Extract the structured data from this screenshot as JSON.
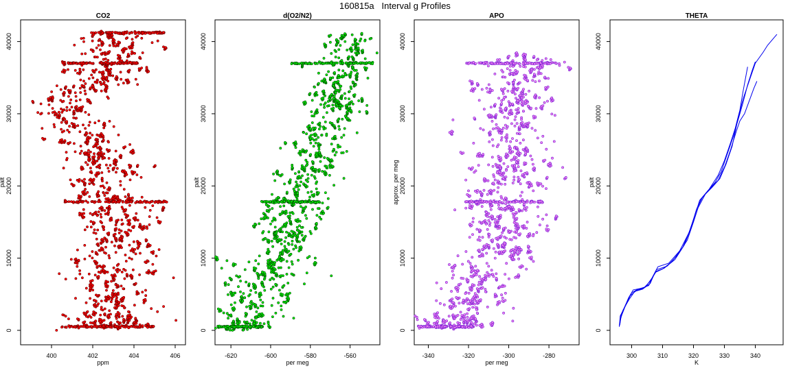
{
  "suptitle": "160815a   Interval g Profiles",
  "chart_data": [
    {
      "type": "scatter",
      "title": "CO2",
      "xlabel": "ppm",
      "ylabel": "palt",
      "xlim": [
        398.5,
        406.5
      ],
      "ylim": [
        -2000,
        43000
      ],
      "xticks": [
        400,
        402,
        404,
        406
      ],
      "yticks": [
        0,
        10000,
        20000,
        30000,
        40000
      ],
      "point_color": "#ff0000",
      "outline_color": "#6b0000",
      "profile": [
        [
          0,
          403.0
        ],
        [
          5000,
          403.1
        ],
        [
          10000,
          403.0
        ],
        [
          15000,
          403.0
        ],
        [
          18000,
          402.9
        ],
        [
          20000,
          402.7
        ],
        [
          22000,
          402.6
        ],
        [
          25000,
          402.0
        ],
        [
          27000,
          401.6
        ],
        [
          28500,
          400.9
        ],
        [
          30000,
          400.7
        ],
        [
          32000,
          400.8
        ],
        [
          34000,
          401.8
        ],
        [
          36000,
          402.8
        ],
        [
          37500,
          403.0
        ],
        [
          41000,
          403.1
        ]
      ],
      "spread": [
        [
          0,
          1.1
        ],
        [
          10000,
          1.0
        ],
        [
          20000,
          0.9
        ],
        [
          30000,
          0.9
        ],
        [
          41000,
          0.9
        ]
      ],
      "horizontal_bands": [
        {
          "y": 500,
          "x_min": 400.5,
          "x_max": 405.0
        },
        {
          "y": 17800,
          "x_min": 400.5,
          "x_max": 405.6
        },
        {
          "y": 37000,
          "x_min": 400.5,
          "x_max": 404.2
        },
        {
          "y": 41200,
          "x_min": 401.8,
          "x_max": 405.5
        }
      ],
      "n_points": 700
    },
    {
      "type": "scatter",
      "title": "d(O2/N2)",
      "xlabel": "per meg",
      "ylabel": "palt",
      "xlim": [
        -628,
        -545
      ],
      "ylim": [
        -2000,
        43000
      ],
      "xticks": [
        -620,
        -600,
        -580,
        -560
      ],
      "yticks": [
        0,
        10000,
        20000,
        30000,
        40000
      ],
      "point_color": "#00ee00",
      "outline_color": "#004d00",
      "profile": [
        [
          0,
          -615
        ],
        [
          3000,
          -608
        ],
        [
          7000,
          -603
        ],
        [
          10000,
          -596
        ],
        [
          15000,
          -590
        ],
        [
          18000,
          -587
        ],
        [
          20000,
          -583
        ],
        [
          23000,
          -578
        ],
        [
          27000,
          -573
        ],
        [
          30000,
          -569
        ],
        [
          33000,
          -566
        ],
        [
          36000,
          -563
        ],
        [
          38000,
          -561
        ],
        [
          41000,
          -560
        ]
      ],
      "spread": [
        [
          0,
          9
        ],
        [
          10000,
          9
        ],
        [
          20000,
          8
        ],
        [
          30000,
          7
        ],
        [
          41000,
          7
        ]
      ],
      "horizontal_bands": [
        {
          "y": 500,
          "x_min": -626,
          "x_max": -604
        },
        {
          "y": 17800,
          "x_min": -605,
          "x_max": -575
        },
        {
          "y": 37000,
          "x_min": -590,
          "x_max": -548
        }
      ],
      "n_points": 650
    },
    {
      "type": "scatter",
      "title": "APO",
      "xlabel": "per meg",
      "ylabel": "approx. per meg",
      "xlim": [
        -347,
        -265
      ],
      "ylim": [
        -2000,
        43000
      ],
      "xticks": [
        -340,
        -320,
        -300,
        -280
      ],
      "yticks": [
        0,
        10000,
        20000,
        30000,
        40000
      ],
      "point_color": "#ee82ee",
      "outline_color": "#7a1fd6",
      "profile": [
        [
          0,
          -330
        ],
        [
          3000,
          -320
        ],
        [
          7000,
          -312
        ],
        [
          10000,
          -308
        ],
        [
          15000,
          -303
        ],
        [
          18000,
          -302
        ],
        [
          20000,
          -300
        ],
        [
          25000,
          -300
        ],
        [
          30000,
          -298
        ],
        [
          33000,
          -297
        ],
        [
          36000,
          -293
        ],
        [
          38000,
          -290
        ]
      ],
      "spread": [
        [
          0,
          10
        ],
        [
          10000,
          10
        ],
        [
          20000,
          10
        ],
        [
          30000,
          10
        ],
        [
          38000,
          8
        ]
      ],
      "horizontal_bands": [
        {
          "y": 500,
          "x_min": -345,
          "x_max": -317
        },
        {
          "y": 17800,
          "x_min": -322,
          "x_max": -283
        },
        {
          "y": 37000,
          "x_min": -322,
          "x_max": -276
        }
      ],
      "n_points": 650
    },
    {
      "type": "line",
      "title": "THETA",
      "xlabel": "K",
      "ylabel": "palt",
      "xlim": [
        293,
        349
      ],
      "ylim": [
        -2000,
        43000
      ],
      "xticks": [
        300,
        310,
        320,
        330,
        340
      ],
      "yticks": [
        0,
        10000,
        20000,
        30000,
        40000
      ],
      "line_color": "#0000ee",
      "series": [
        {
          "points": [
            [
              296.0,
              500
            ],
            [
              296.3,
              2000
            ],
            [
              297.5,
              3000
            ],
            [
              299.0,
              4500
            ],
            [
              300.5,
              5600
            ],
            [
              303.0,
              5800
            ],
            [
              305.5,
              6200
            ],
            [
              307.0,
              7500
            ],
            [
              308.0,
              8400
            ],
            [
              311.5,
              8900
            ],
            [
              315.0,
              10500
            ],
            [
              318.0,
              12500
            ],
            [
              320.0,
              15000
            ],
            [
              321.5,
              17000
            ],
            [
              324.0,
              19000
            ],
            [
              327.0,
              20500
            ],
            [
              329.0,
              22000
            ],
            [
              331.0,
              24500
            ],
            [
              333.0,
              27000
            ],
            [
              334.5,
              29500
            ],
            [
              336.0,
              32000
            ],
            [
              338.0,
              34500
            ],
            [
              340.0,
              37000
            ],
            [
              342.5,
              38500
            ],
            [
              344.0,
              39500
            ],
            [
              346.0,
              40500
            ],
            [
              347.0,
              41000
            ]
          ]
        },
        {
          "points": [
            [
              296.2,
              800
            ],
            [
              296.6,
              2200
            ],
            [
              298.0,
              3500
            ],
            [
              300.0,
              5200
            ],
            [
              302.0,
              5700
            ],
            [
              304.5,
              6000
            ],
            [
              306.5,
              7200
            ],
            [
              308.5,
              8800
            ],
            [
              312.0,
              9300
            ],
            [
              315.5,
              11000
            ],
            [
              318.5,
              13500
            ],
            [
              320.5,
              16000
            ],
            [
              322.0,
              18000
            ],
            [
              325.0,
              19500
            ],
            [
              328.0,
              21500
            ],
            [
              330.0,
              23500
            ],
            [
              332.0,
              26000
            ],
            [
              333.5,
              28000
            ],
            [
              335.0,
              30500
            ],
            [
              336.0,
              33000
            ],
            [
              337.5,
              36500
            ]
          ]
        },
        {
          "points": [
            [
              296.0,
              600
            ],
            [
              296.5,
              1800
            ],
            [
              297.8,
              3200
            ],
            [
              299.5,
              4800
            ],
            [
              301.5,
              5500
            ],
            [
              304.0,
              5900
            ],
            [
              306.0,
              6800
            ],
            [
              308.0,
              8200
            ],
            [
              310.5,
              8600
            ],
            [
              314.0,
              9800
            ],
            [
              317.0,
              11800
            ],
            [
              319.5,
              14500
            ],
            [
              321.0,
              16800
            ],
            [
              323.0,
              18500
            ],
            [
              326.0,
              19800
            ],
            [
              328.5,
              21000
            ],
            [
              330.5,
              23000
            ],
            [
              332.5,
              25500
            ],
            [
              334.0,
              28500
            ],
            [
              336.0,
              31500
            ],
            [
              337.5,
              34000
            ],
            [
              339.0,
              36000
            ],
            [
              340.0,
              37200
            ]
          ]
        },
        {
          "points": [
            [
              296.1,
              700
            ],
            [
              296.4,
              1500
            ],
            [
              297.2,
              2800
            ],
            [
              299.2,
              4300
            ],
            [
              301.0,
              5400
            ],
            [
              303.5,
              5700
            ],
            [
              306.0,
              6500
            ],
            [
              307.5,
              8000
            ],
            [
              310.0,
              8500
            ],
            [
              313.0,
              9500
            ],
            [
              316.5,
              11500
            ],
            [
              319.0,
              14000
            ],
            [
              320.8,
              16500
            ],
            [
              322.5,
              18200
            ],
            [
              325.5,
              19700
            ],
            [
              328.0,
              20800
            ],
            [
              330.2,
              22800
            ],
            [
              332.0,
              25000
            ],
            [
              333.8,
              27500
            ],
            [
              335.0,
              29000
            ],
            [
              336.5,
              30000
            ],
            [
              337.8,
              31500
            ],
            [
              339.5,
              33500
            ],
            [
              340.5,
              34500
            ]
          ]
        }
      ]
    }
  ]
}
